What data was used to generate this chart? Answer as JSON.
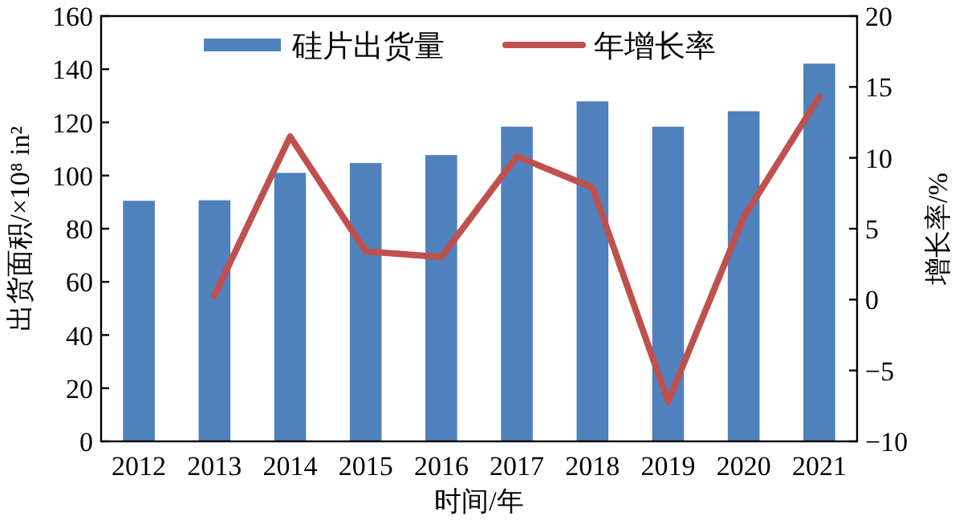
{
  "chart_data": {
    "type": "bar",
    "xlabel": "时间/年",
    "ylabel": "出货面积/×10⁸ in²",
    "y2label": "增长率/%",
    "categories": [
      "2012",
      "2013",
      "2014",
      "2015",
      "2016",
      "2017",
      "2018",
      "2019",
      "2020",
      "2021"
    ],
    "series": [
      {
        "name": "硅片出货量",
        "color": "#4f81bd",
        "values": [
          90.5,
          90.7,
          101,
          104.7,
          107.7,
          118.4,
          127.9,
          118.4,
          124.2,
          142.1
        ]
      },
      {
        "name": "年增长率",
        "type": "line",
        "axis": "y2",
        "color": "#c0504d",
        "values": [
          null,
          0.3,
          11.5,
          3.4,
          3.0,
          10.1,
          7.9,
          -7.2,
          5.8,
          14.3
        ]
      }
    ],
    "ylim": [
      0,
      160
    ],
    "yticks": [
      0,
      20,
      40,
      60,
      80,
      100,
      120,
      140,
      160
    ],
    "y2lim": [
      -10,
      20
    ],
    "y2ticks": [
      {
        "value": -10,
        "label": "−10"
      },
      {
        "value": -5,
        "label": "−5"
      },
      0,
      5,
      10,
      15,
      20
    ],
    "legend": "top"
  }
}
